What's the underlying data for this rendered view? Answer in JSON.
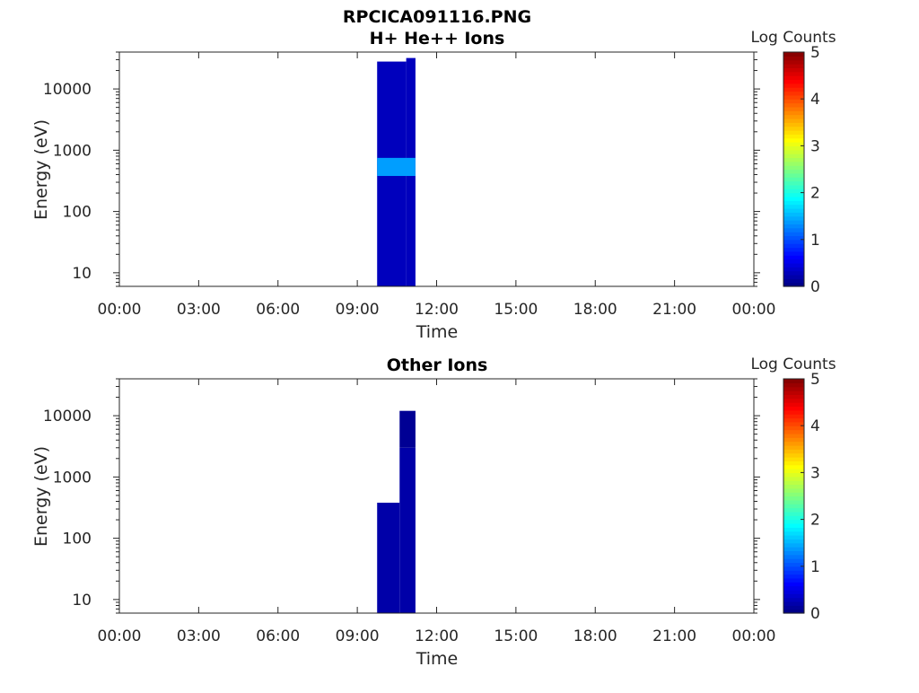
{
  "figure_title": "RPCICA091116.PNG",
  "chart_data": [
    {
      "type": "heatmap",
      "title": "H+ He++ Ions",
      "xlabel": "Time",
      "ylabel": "Energy (eV)",
      "yscale": "log",
      "ylim": [
        6,
        40000
      ],
      "xlim": [
        0,
        24
      ],
      "x_tick_labels": [
        "00:00",
        "03:00",
        "06:00",
        "09:00",
        "12:00",
        "15:00",
        "18:00",
        "21:00",
        "00:00"
      ],
      "x_tick_values": [
        0,
        3,
        6,
        9,
        12,
        15,
        18,
        21,
        24
      ],
      "y_tick_labels": [
        "10",
        "100",
        "1000",
        "10000"
      ],
      "y_tick_values": [
        10,
        100,
        1000,
        10000
      ],
      "colorbar": {
        "label": "Log Counts",
        "range": [
          0,
          5
        ],
        "tick_labels": [
          "0",
          "1",
          "2",
          "3",
          "4",
          "5"
        ],
        "colormap": "jet"
      },
      "grid": false,
      "data_regions": [
        {
          "t_start": 9.75,
          "t_end": 10.85,
          "e_low": 6,
          "e_high": 28000,
          "log_counts": 0.3
        },
        {
          "t_start": 10.85,
          "t_end": 11.2,
          "e_low": 6,
          "e_high": 32000,
          "log_counts": 0.3
        },
        {
          "t_start": 9.75,
          "t_end": 11.2,
          "e_low": 380,
          "e_high": 750,
          "log_counts": 1.4
        }
      ]
    },
    {
      "type": "heatmap",
      "title": "Other Ions",
      "xlabel": "Time",
      "ylabel": "Energy (eV)",
      "yscale": "log",
      "ylim": [
        6,
        40000
      ],
      "xlim": [
        0,
        24
      ],
      "x_tick_labels": [
        "00:00",
        "03:00",
        "06:00",
        "09:00",
        "12:00",
        "15:00",
        "18:00",
        "21:00",
        "00:00"
      ],
      "x_tick_values": [
        0,
        3,
        6,
        9,
        12,
        15,
        18,
        21,
        24
      ],
      "y_tick_labels": [
        "10",
        "100",
        "1000",
        "10000"
      ],
      "y_tick_values": [
        10,
        100,
        1000,
        10000
      ],
      "colorbar": {
        "label": "Log Counts",
        "range": [
          0,
          5
        ],
        "tick_labels": [
          "0",
          "1",
          "2",
          "3",
          "4",
          "5"
        ],
        "colormap": "jet"
      },
      "grid": false,
      "data_regions": [
        {
          "t_start": 9.75,
          "t_end": 10.6,
          "e_low": 6,
          "e_high": 380,
          "log_counts": 0.2
        },
        {
          "t_start": 10.6,
          "t_end": 11.2,
          "e_low": 6,
          "e_high": 3000,
          "log_counts": 0.2
        },
        {
          "t_start": 10.6,
          "t_end": 11.2,
          "e_low": 3000,
          "e_high": 12000,
          "log_counts": 0.1
        }
      ]
    }
  ]
}
